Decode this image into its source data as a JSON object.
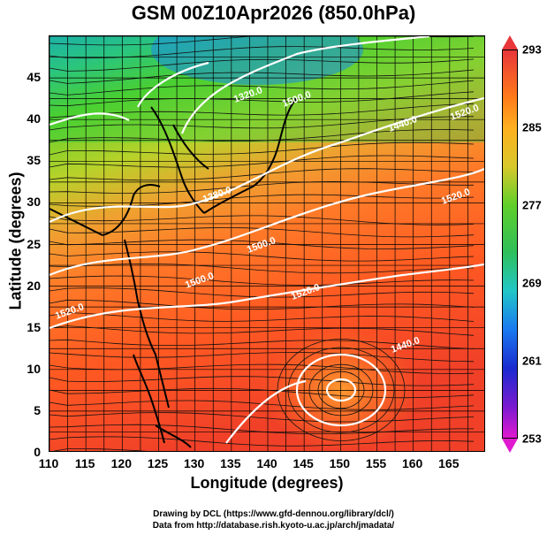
{
  "title": "GSM 00Z10Apr2026 (850.0hPa)",
  "xaxis": {
    "label": "Longitude (degrees)",
    "ticks": [
      "110",
      "115",
      "120",
      "125",
      "130",
      "135",
      "140",
      "145",
      "150",
      "155",
      "160",
      "165"
    ],
    "range": [
      110,
      170
    ]
  },
  "yaxis": {
    "label": "Latitude  (degrees)",
    "ticks": [
      "0",
      "5",
      "10",
      "15",
      "20",
      "25",
      "30",
      "35",
      "40",
      "45"
    ],
    "range": [
      0,
      50
    ]
  },
  "colorbar": {
    "ticks": [
      "293",
      "285",
      "277",
      "269",
      "261",
      "253"
    ],
    "range": [
      253,
      293
    ]
  },
  "contour_labels": [
    "1320.0",
    "1380.0",
    "1440.0",
    "1500.0",
    "1500.0",
    "1500.0",
    "1520.0",
    "1520.0",
    "1520.0",
    "1520.0",
    "1440.0"
  ],
  "credits": {
    "line1": "Drawing by DCL (https://www.gfd-dennou.org/library/dcl/)",
    "line2": "Data from http://database.rish.kyoto-u.ac.jp/arch/jmadata/"
  },
  "colors": {
    "warm": "#e8363a",
    "orange": "#ff8a1a",
    "green": "#4fcf2a",
    "cyan": "#22c7c7",
    "blue": "#1a2bd0",
    "magenta": "#e01ad0"
  }
}
